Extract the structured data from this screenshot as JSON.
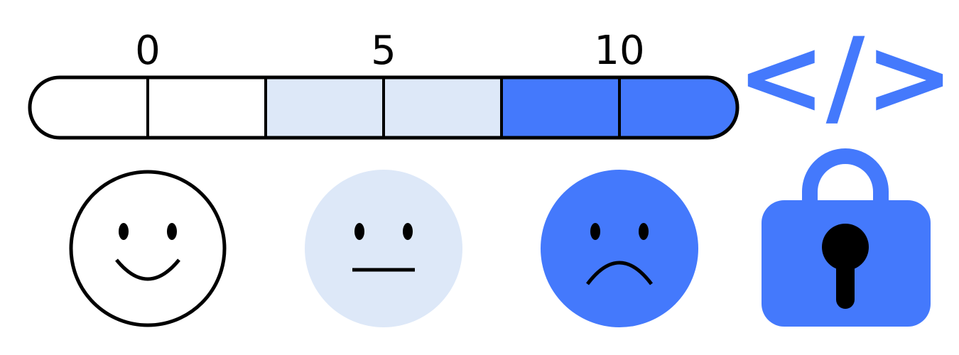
{
  "scale": {
    "labels": [
      "0",
      "5",
      "10"
    ]
  },
  "code_icon": "</>"
}
